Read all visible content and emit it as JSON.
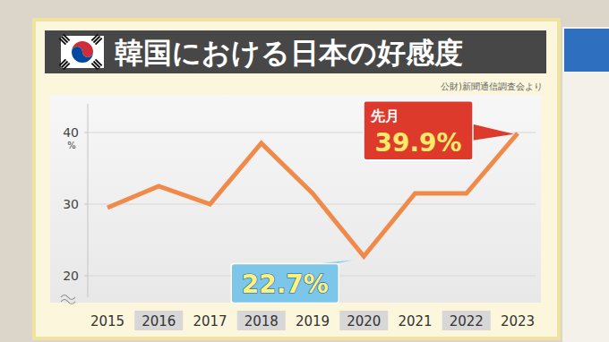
{
  "chart_data": {
    "type": "line",
    "title": "韓国における日本の好感度",
    "source": "公財)新聞通信調査会より",
    "categories": [
      "2015",
      "2016",
      "2017",
      "2018",
      "2019",
      "2020",
      "2021",
      "2022",
      "2023"
    ],
    "values": [
      29.5,
      32.5,
      30,
      38.5,
      31.5,
      22.7,
      31.5,
      31.5,
      39.9
    ],
    "value_labels": [
      null,
      null,
      null,
      null,
      null,
      "22.7%",
      null,
      null,
      "39.9%"
    ],
    "annotation": "先月",
    "ylabel": "%",
    "color": "#f08a4b",
    "ylim": [
      17,
      44
    ],
    "yticks": [
      20,
      30,
      40
    ],
    "grid": true
  }
}
